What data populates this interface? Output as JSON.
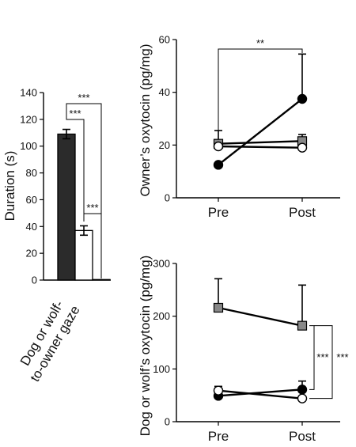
{
  "chart_data": [
    {
      "id": "duration",
      "type": "bar",
      "ylabel": "Duration (s)",
      "ylim": [
        0,
        140
      ],
      "yticks": [
        0,
        20,
        40,
        60,
        80,
        100,
        120,
        140
      ],
      "xlabel_lines": [
        "Dog or wolf-",
        "to-owner gaze"
      ],
      "bars": [
        {
          "value": 109,
          "err": 3.5,
          "fill": "#2b2b2b"
        },
        {
          "value": 37,
          "err": 3.5,
          "fill": "#ffffff"
        },
        {
          "value": 0.4,
          "err": 0,
          "fill": "#ffffff"
        }
      ],
      "significance": [
        {
          "from": 0,
          "to": 2,
          "label": "***"
        },
        {
          "from": 0,
          "to": 1,
          "label": "***"
        },
        {
          "from": 1,
          "to": 2,
          "label": "***"
        }
      ]
    },
    {
      "id": "owner_oxytocin",
      "type": "line",
      "ylabel": "Owner’s oxytocin (pg/mg)",
      "ylim": [
        0,
        60
      ],
      "yticks": [
        0,
        20,
        40,
        60
      ],
      "categories": [
        "Pre",
        "Post"
      ],
      "series": [
        {
          "marker": "circle",
          "fill": "#000000",
          "values": [
            12.5,
            37.5
          ],
          "err": [
            0,
            17
          ],
          "err_dir": "up"
        },
        {
          "marker": "square",
          "fill": "#888888",
          "values": [
            20.5,
            21.5
          ],
          "err": [
            5,
            2.5
          ],
          "err_dir": "up"
        },
        {
          "marker": "circle",
          "fill": "#ffffff",
          "values": [
            19.5,
            19
          ],
          "err": [
            0,
            0
          ],
          "err_dir": "up"
        }
      ],
      "significance": [
        {
          "label": "**"
        }
      ]
    },
    {
      "id": "dog_wolf_oxytocin",
      "type": "line",
      "ylabel": "Dog or wolf’s oxytocin (pg/mg)",
      "ylim": [
        0,
        300
      ],
      "yticks": [
        0,
        100,
        200,
        300
      ],
      "categories": [
        "Pre",
        "Post"
      ],
      "series": [
        {
          "marker": "square",
          "fill": "#888888",
          "values": [
            216,
            182
          ],
          "err": [
            55,
            77
          ],
          "err_dir": "up"
        },
        {
          "marker": "circle",
          "fill": "#000000",
          "values": [
            49,
            61
          ],
          "err": [
            10,
            16
          ],
          "err_dir": "up"
        },
        {
          "marker": "circle",
          "fill": "#ffffff",
          "values": [
            59,
            44
          ],
          "err": [
            8,
            0
          ],
          "err_dir": "up"
        }
      ],
      "significance": [
        {
          "label": "***"
        },
        {
          "label": "***"
        }
      ]
    }
  ]
}
